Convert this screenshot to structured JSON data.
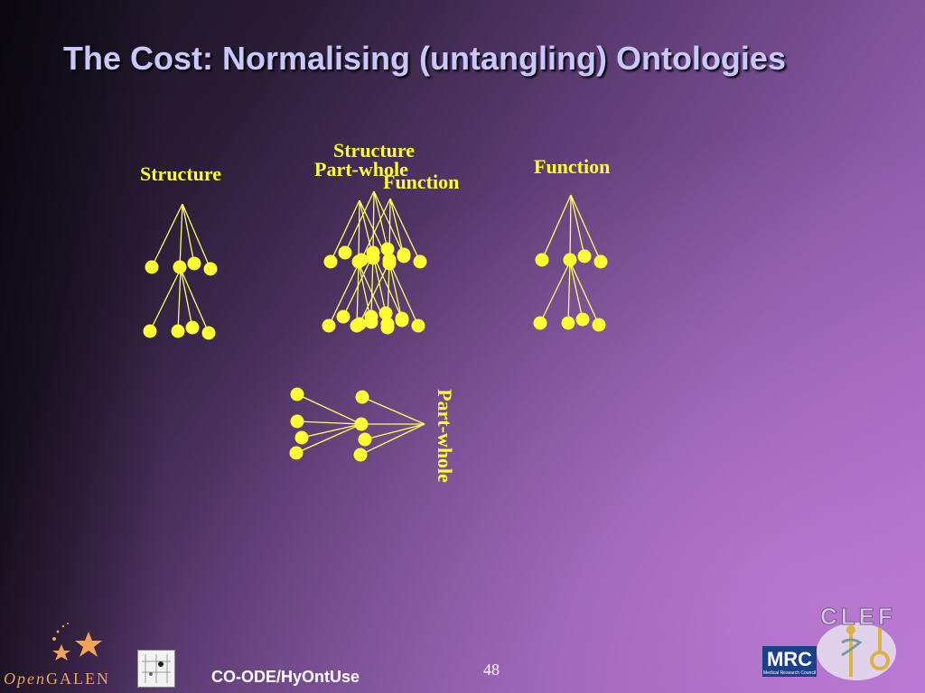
{
  "slide": {
    "title": "The Cost: Normalising (untangling) Ontologies",
    "page_number": "48",
    "footer": "CO-ODE/HyOntUse"
  },
  "diagram": {
    "labels": {
      "left_tree": "Structure",
      "middle_structure": "Structure",
      "middle_partwhole": "Part-whole",
      "middle_function": "Function",
      "right_tree": "Function",
      "bottom_partwhole": "Part-whole"
    }
  },
  "logos": {
    "opengalen_open": "Open",
    "opengalen_galen": "GALEN",
    "mrc": "MRC",
    "mrc_sub": "Medical Research Council",
    "clef": "CLEF"
  },
  "colors": {
    "title": "#c8c8ff",
    "node": "#ffff33",
    "edge": "#ffff66"
  }
}
